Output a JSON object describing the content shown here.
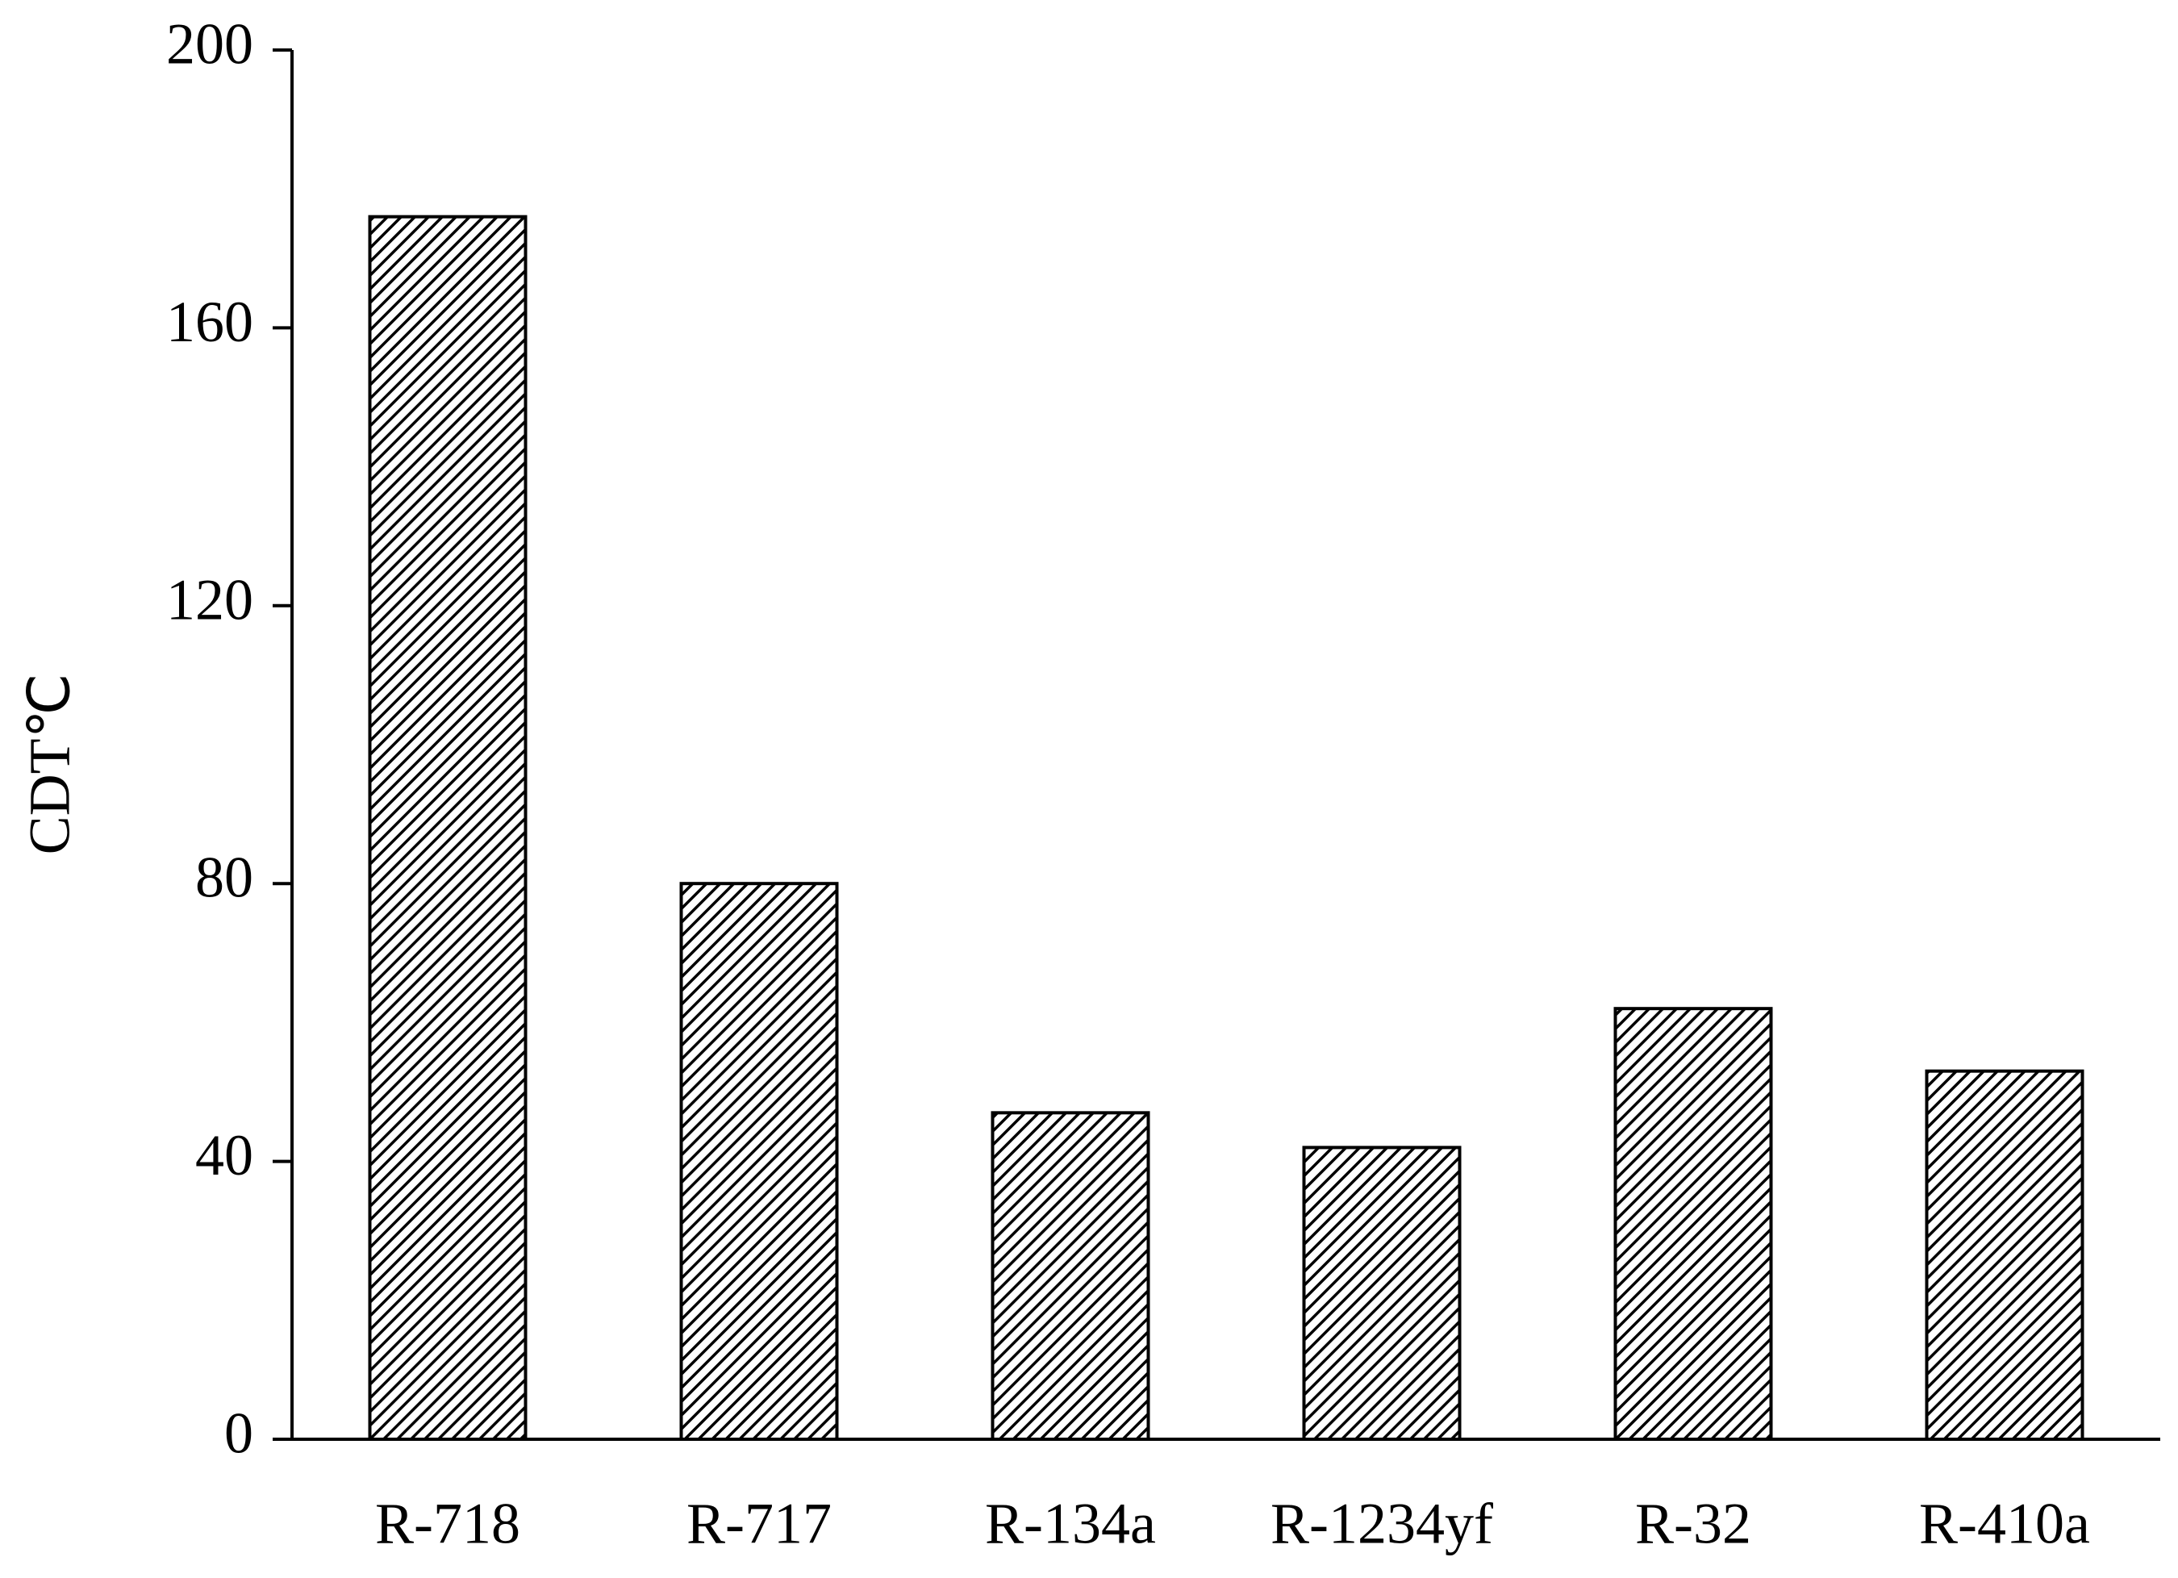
{
  "chart_data": {
    "type": "bar",
    "ylabel": "CDT℃",
    "categories": [
      "R-718",
      "R-717",
      "R-134a",
      "R-1234yf",
      "R-32",
      "R-410a"
    ],
    "values": [
      176,
      80,
      47,
      42,
      62,
      53
    ],
    "color": "#000000",
    "pattern": "hatch",
    "ylim": [
      0,
      200
    ],
    "yticks": [
      0,
      40,
      80,
      120,
      160,
      200
    ],
    "grid": false
  }
}
